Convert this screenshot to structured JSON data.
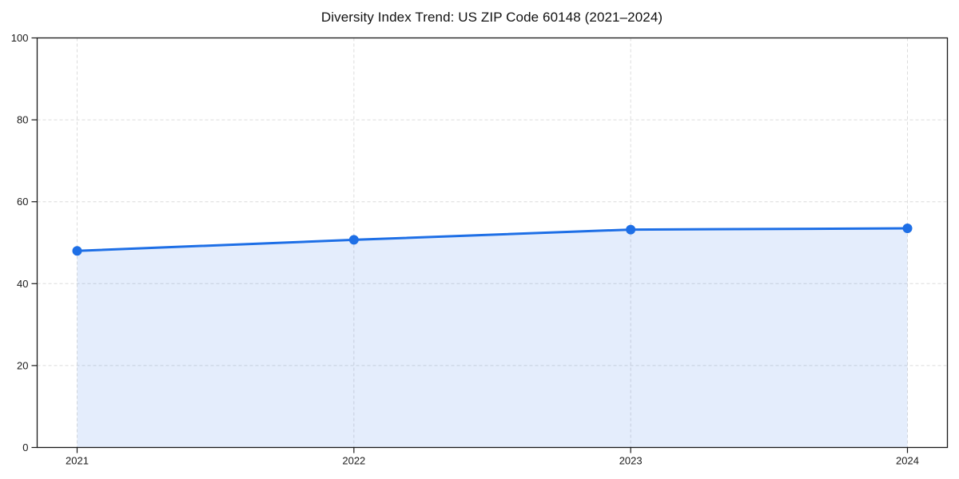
{
  "page": {
    "background_color": "#ffffff"
  },
  "chart_data": {
    "type": "line",
    "title": "Diversity Index Trend: US ZIP Code 60148 (2021–2024)",
    "xlabel": "",
    "ylabel": "",
    "categories": [
      "2021",
      "2022",
      "2023",
      "2024"
    ],
    "values": [
      48.0,
      50.7,
      53.2,
      53.5
    ],
    "ylim": [
      0,
      100
    ],
    "yticks": [
      0,
      20,
      40,
      60,
      80,
      100
    ],
    "grid": true,
    "grid_style": "dashed",
    "legend": false,
    "marker": "circle",
    "colors": {
      "line": "#1e6fe6",
      "marker": "#1e6fe6",
      "fill": "#1e6fe6",
      "fill_opacity": 0.12,
      "grid": "#dcdcdc",
      "axis": "#1a1a1a",
      "tick_label": "#1a1a1a",
      "title": "#111111"
    }
  }
}
